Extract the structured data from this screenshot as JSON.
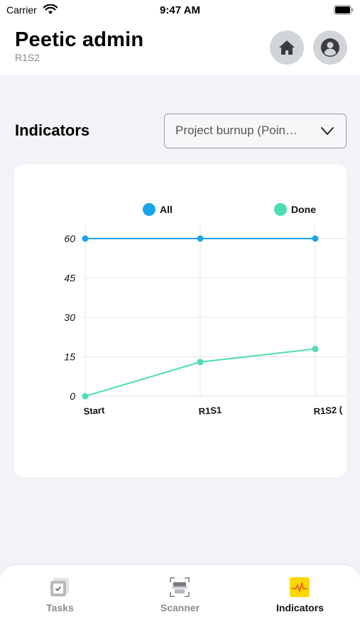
{
  "status_bar": {
    "carrier": "Carrier",
    "time": "9:47 AM"
  },
  "header": {
    "title": "Peetic admin",
    "subtitle": "R1S2"
  },
  "indicators": {
    "title": "Indicators",
    "dropdown_value": "Project burnup (Poin…"
  },
  "chart_data": {
    "type": "line",
    "categories": [
      "Start",
      "R1S1",
      "R1S2 ("
    ],
    "series": [
      {
        "name": "All",
        "values": [
          60,
          60,
          60
        ],
        "color": "#1aa3ea"
      },
      {
        "name": "Done",
        "values": [
          0,
          13,
          18
        ],
        "color": "#4fdcb4"
      }
    ],
    "y_ticks": [
      "0",
      "15",
      "30",
      "45",
      "60"
    ],
    "ylim": [
      0,
      60
    ],
    "grid": true,
    "legend_position": "top"
  },
  "tabs": [
    {
      "label": "Tasks",
      "icon": "tasks-icon",
      "active": false
    },
    {
      "label": "Scanner",
      "icon": "scanner-icon",
      "active": false
    },
    {
      "label": "Indicators",
      "icon": "indicators-icon",
      "active": true
    }
  ],
  "colors": {
    "accent_yellow": "#fcd700",
    "background": "#f2f2f7"
  }
}
